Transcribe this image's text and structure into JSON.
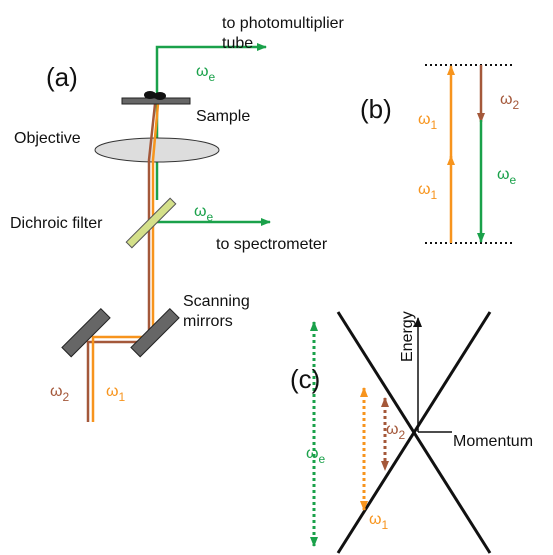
{
  "panel_a": {
    "label": "(a)",
    "photomultiplier": [
      "to photomultiplier",
      "tube"
    ],
    "sample": "Sample",
    "objective": "Objective",
    "dichroic": "Dichroic filter",
    "spectrometer": "to spectrometer",
    "mirrors": [
      "Scanning",
      "mirrors"
    ],
    "omega_e_top": {
      "symbol": "ω",
      "sub": "e"
    },
    "omega_e_mid": {
      "symbol": "ω",
      "sub": "e"
    },
    "omega_2": {
      "symbol": "ω",
      "sub": "2"
    },
    "omega_1": {
      "symbol": "ω",
      "sub": "1"
    }
  },
  "panel_b": {
    "label": "(b)",
    "omega_1_upper": {
      "symbol": "ω",
      "sub": "1"
    },
    "omega_1_lower": {
      "symbol": "ω",
      "sub": "1"
    },
    "omega_2": {
      "symbol": "ω",
      "sub": "2"
    },
    "omega_e": {
      "symbol": "ω",
      "sub": "e"
    }
  },
  "panel_c": {
    "label": "(c)",
    "energy": "Energy",
    "momentum": "Momentum",
    "omega_e": {
      "symbol": "ω",
      "sub": "e"
    },
    "omega_2": {
      "symbol": "ω",
      "sub": "2"
    },
    "omega_1": {
      "symbol": "ω",
      "sub": "1"
    }
  }
}
